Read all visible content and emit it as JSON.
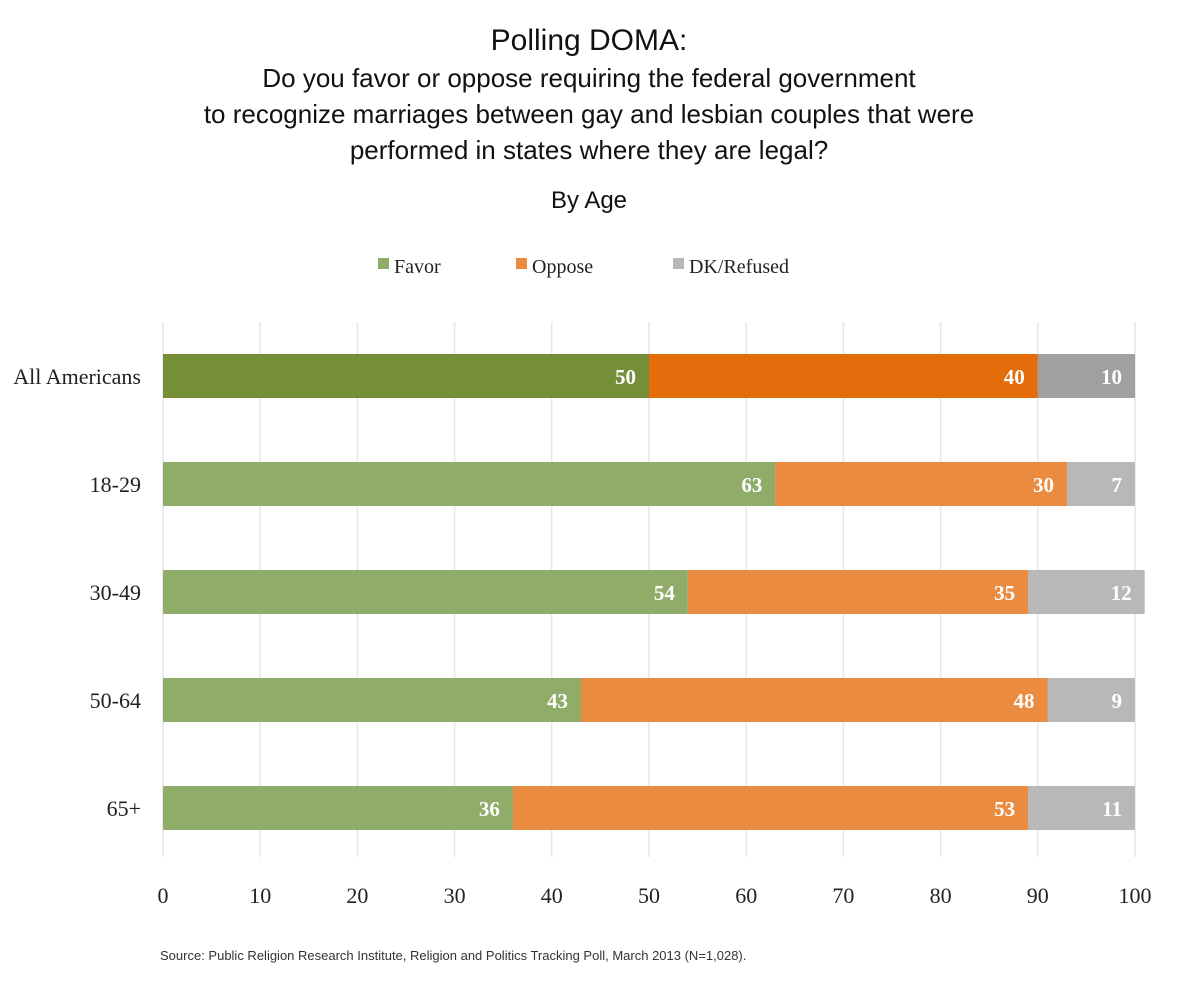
{
  "header": {
    "title": "Polling DOMA:",
    "question_lines": [
      "Do you favor or oppose requiring the federal government",
      "to recognize marriages between gay and lesbian couples that were",
      "performed in states where they are legal?"
    ],
    "subtitle": "By Age"
  },
  "footer": {
    "source": "Source: Public Religion Research Institute, Religion and Politics Tracking Poll, March 2013 (N=1,028)."
  },
  "chart_data": {
    "type": "bar",
    "orientation": "horizontal",
    "stacked": true,
    "categories": [
      "All Americans",
      "18-29",
      "30-49",
      "50-64",
      "65+"
    ],
    "series": [
      {
        "name": "Favor",
        "values": [
          50,
          63,
          54,
          43,
          36
        ],
        "color": "#8fac68",
        "highlight_color": "#758f38"
      },
      {
        "name": "Oppose",
        "values": [
          40,
          30,
          35,
          48,
          53
        ],
        "color": "#ea8b3f",
        "highlight_color": "#e46c0a"
      },
      {
        "name": "DK/Refused",
        "values": [
          10,
          7,
          12,
          9,
          11
        ],
        "color": "#b8b8b8",
        "highlight_color": "#a0a0a0"
      }
    ],
    "highlight_category": "All Americans",
    "xlim": [
      0,
      100
    ],
    "xticks": [
      0,
      10,
      20,
      30,
      40,
      50,
      60,
      70,
      80,
      90,
      100
    ],
    "grid": true,
    "legend_position": "top-center"
  }
}
